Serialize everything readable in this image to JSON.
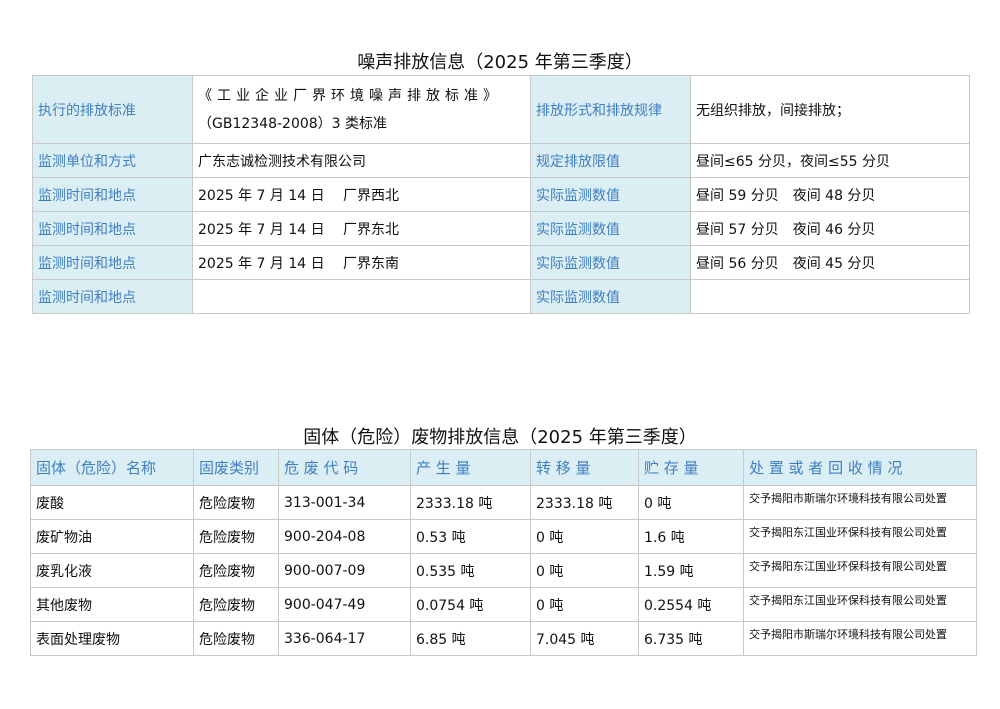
{
  "noise": {
    "title": "噪声排放信息（2025 年第三季度）",
    "standard": {
      "label": "执行的排放标准",
      "lines": [
        "《工业企业厂界环境噪声排放标准》",
        "（GB12348-2008）3 类标准"
      ],
      "label2": "排放形式和排放规律",
      "value2": "无组织排放，间接排放；"
    },
    "rows": [
      [
        "监测单位和方式",
        "广东志诚检测技术有限公司",
        "规定排放限值",
        "昼间≤65 分贝，夜间≤55 分贝"
      ],
      [
        "监测时间和地点",
        "2025 年 7 月 14 日　 厂界西北",
        "实际监测数值",
        "昼间 59 分贝　夜间 48 分贝"
      ],
      [
        "监测时间和地点",
        "2025 年 7 月 14 日　 厂界东北",
        "实际监测数值",
        "昼间 57 分贝　夜间 46 分贝"
      ],
      [
        "监测时间和地点",
        "2025 年 7 月 14 日　 厂界东南",
        "实际监测数值",
        "昼间 56 分贝　夜间 45 分贝"
      ],
      [
        "监测时间和地点",
        null,
        "实际监测数值",
        null
      ]
    ]
  },
  "waste": {
    "title": "固体（危险）废物排放信息（2025 年第三季度）",
    "header": [
      "固体（危险）名称",
      "固废类别",
      "危 废 代 码",
      "产 生 量",
      "转 移 量",
      "贮 存 量",
      "处 置 或 者 回 收 情 况"
    ],
    "rows": [
      [
        "废酸",
        "危险废物",
        "313-001-34",
        "2333.18 吨",
        "2333.18 吨",
        " 0 吨",
        "交予揭阳市斯瑞尔环境科技有限公司处置"
      ],
      [
        "废矿物油",
        "危险废物",
        "900-204-08",
        "0.53 吨",
        "0 吨",
        "1.6 吨",
        "交予揭阳东江国业环保科技有限公司处置"
      ],
      [
        "废乳化液",
        "危险废物",
        "900-007-09",
        "0.535 吨",
        "0 吨",
        "1.59 吨",
        "交予揭阳东江国业环保科技有限公司处置"
      ],
      [
        "其他废物",
        "危险废物",
        "900-047-49",
        "0.0754 吨",
        "0 吨",
        "0.2554 吨",
        "交予揭阳东江国业环保科技有限公司处置"
      ],
      [
        "表面处理废物",
        "危险废物",
        "336-064-17",
        "6.85 吨",
        "7.045 吨",
        "6.735 吨",
        "交予揭阳市斯瑞尔环境科技有限公司处置"
      ]
    ]
  }
}
